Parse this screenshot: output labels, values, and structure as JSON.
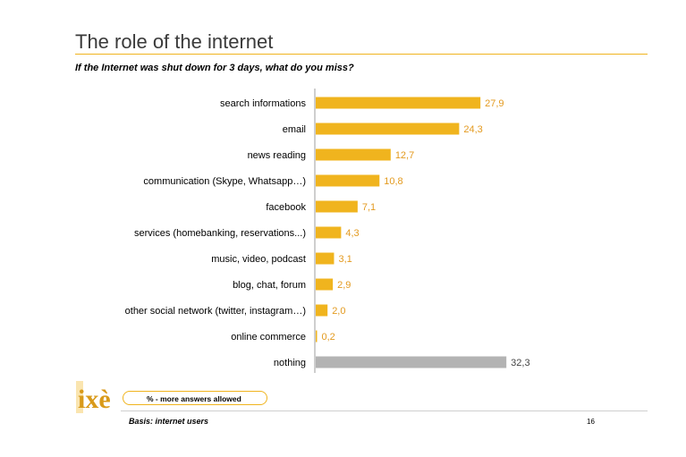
{
  "slide": {
    "title": "The role of the internet",
    "subtitle": "If the Internet was shut down for 3 days, what do you miss?",
    "note": "% - more answers allowed",
    "basis": "Basis: internet users",
    "page_number": "16",
    "logo_text": "ixè"
  },
  "colors": {
    "accent": "#f0b41e",
    "bar": "#f0b41e",
    "value_label": "#e39a1f",
    "nothing_bar": "#b3b3b3",
    "axis": "#9e9e9e"
  },
  "chart_data": {
    "type": "bar",
    "orientation": "horizontal",
    "title": "",
    "categories": [
      "search informations",
      "email",
      "news reading",
      "communication (Skype, Whatsapp…)",
      "facebook",
      "services (homebanking, reservations...)",
      "music, video, podcast",
      "blog, chat, forum",
      "other social network (twitter, instagram…)",
      "online commerce",
      "nothing"
    ],
    "values": [
      27.9,
      24.3,
      12.7,
      10.8,
      7.1,
      4.3,
      3.1,
      2.9,
      2.0,
      0.2,
      32.3
    ],
    "value_labels": [
      "27,9",
      "24,3",
      "12,7",
      "10,8",
      "7,1",
      "4,3",
      "3,1",
      "2,9",
      "2,0",
      "0,2",
      "32,3"
    ],
    "highlight_category": "nothing",
    "xlim": [
      0,
      40
    ],
    "grid": false,
    "legend": "none"
  }
}
